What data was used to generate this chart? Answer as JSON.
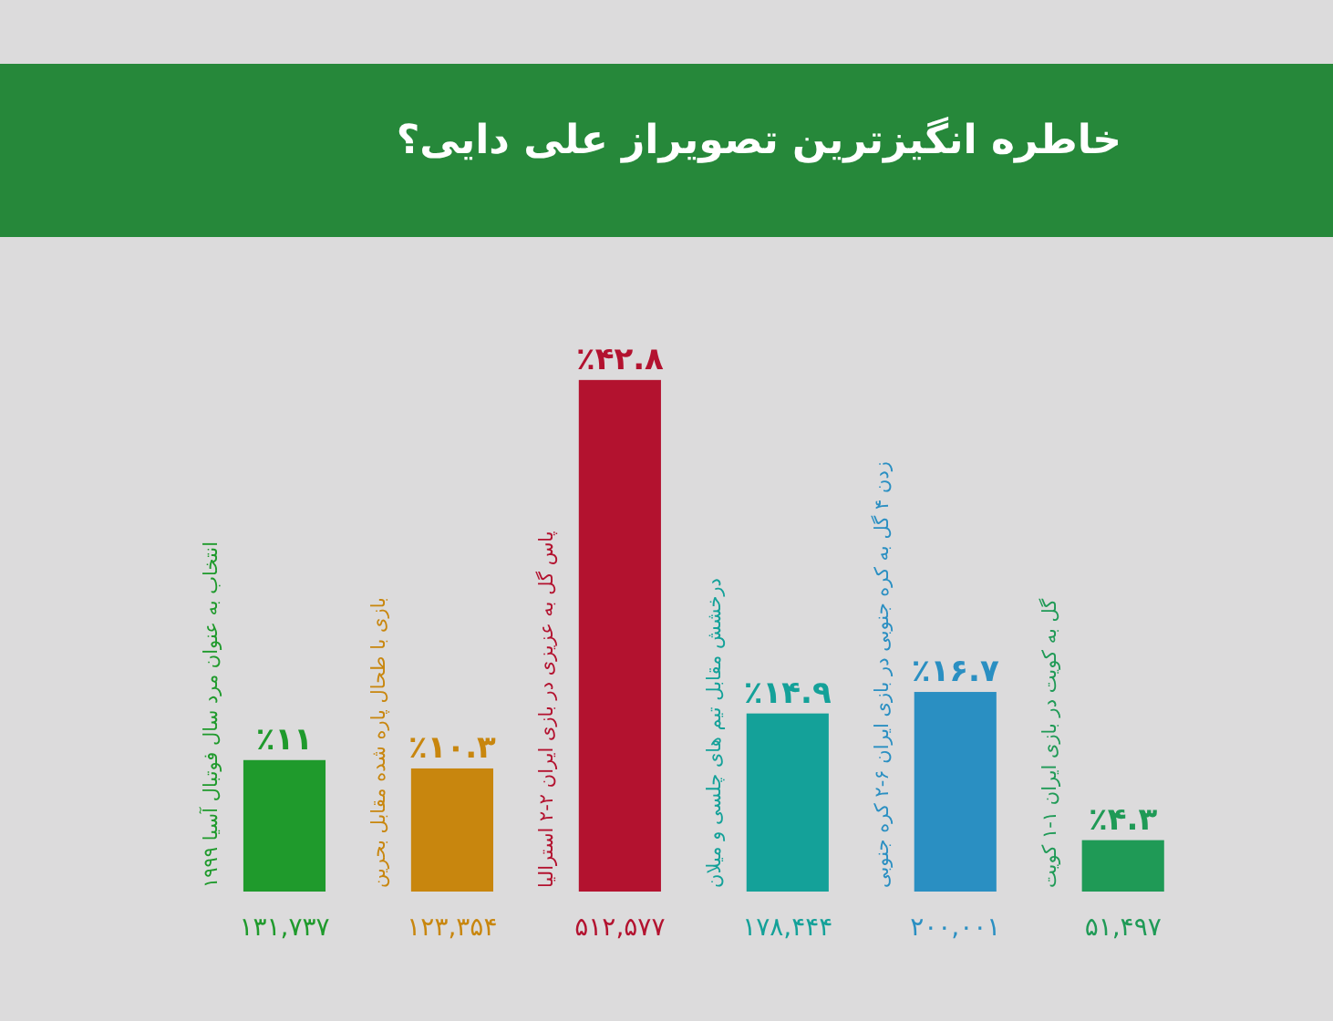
{
  "chart_data": {
    "type": "bar",
    "title": "خاطره انگیزترین تصویراز علی دایی؟",
    "categories": [
      "انتخاب به عنوان مرد سال فوتبال آسیا ۱۹۹۹",
      "بازی با طحال پاره شده مقابل بحرین",
      "پاس گل به عزیزی در بازی ایران ۲-۲ استرالیا",
      "درخشش مقابل تیم های چلسی و میلان",
      "زدن ۴ گل به کره جنوبی در بازی ایران ۶-۲ کره جنوبی",
      "گل به کویت در بازی ایران ۱-۱ کویت"
    ],
    "values": [
      11,
      10.3,
      42.8,
      14.9,
      16.7,
      4.3
    ],
    "colors": [
      "#1f9a2c",
      "#c8860e",
      "#b3122f",
      "#14a199",
      "#2a8fc2",
      "#1f9a56"
    ],
    "value_labels": [
      "٪۱۱",
      "٪۱۰.۳",
      "٪۴۲.۸",
      "٪۱۴.۹",
      "٪۱۶.۷",
      "٪۴.۳"
    ],
    "annotations": [
      "۱۳۱,۷۳۷",
      "۱۲۳,۳۵۴",
      "۵۱۲,۵۷۷",
      "۱۷۸,۴۴۴",
      "۲۰۰,۰۰۱",
      "۵۱,۴۹۷"
    ]
  }
}
